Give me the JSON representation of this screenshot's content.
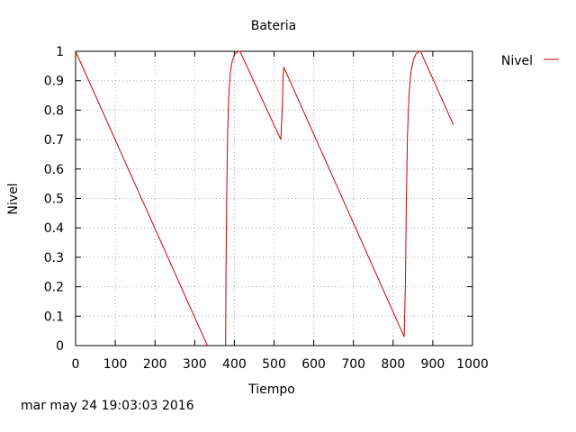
{
  "chart_data": {
    "type": "line",
    "title": "Bateria",
    "xlabel": "Tiempo",
    "ylabel": "Nivel",
    "xlim": [
      0,
      1000
    ],
    "ylim": [
      0,
      1
    ],
    "xticks": [
      "0",
      "100",
      "200",
      "300",
      "400",
      "500",
      "600",
      "700",
      "800",
      "900",
      "1000"
    ],
    "yticks": [
      "0",
      "0.1",
      "0.2",
      "0.3",
      "0.4",
      "0.5",
      "0.6",
      "0.7",
      "0.8",
      "0.9",
      "1"
    ],
    "grid": true,
    "legend": "top-right, outside",
    "series": [
      {
        "name": "Nivel",
        "color": "#cc0000",
        "segments": [
          [
            [
              0,
              1.0
            ],
            [
              332,
              0.0
            ]
          ],
          [
            [
              378,
              0.0
            ],
            [
              379,
              0.25
            ],
            [
              381,
              0.53
            ],
            [
              383,
              0.72
            ],
            [
              386,
              0.85
            ],
            [
              390,
              0.93
            ],
            [
              395,
              0.97
            ],
            [
              401,
              0.99
            ],
            [
              410,
              1.0
            ],
            [
              414,
              1.0
            ],
            [
              517,
              0.7
            ],
            [
              520,
              0.78
            ],
            [
              522,
              0.87
            ],
            [
              523,
              0.92
            ],
            [
              525,
              0.945
            ],
            [
              828,
              0.03
            ],
            [
              831,
              0.22
            ],
            [
              833,
              0.47
            ],
            [
              836,
              0.71
            ],
            [
              840,
              0.85
            ],
            [
              845,
              0.93
            ],
            [
              851,
              0.97
            ],
            [
              857,
              0.99
            ],
            [
              866,
              1.0
            ],
            [
              869,
              1.0
            ],
            [
              952,
              0.75
            ]
          ]
        ]
      }
    ]
  },
  "footer": {
    "timestamp": "mar may 24 19:03:03 2016"
  }
}
